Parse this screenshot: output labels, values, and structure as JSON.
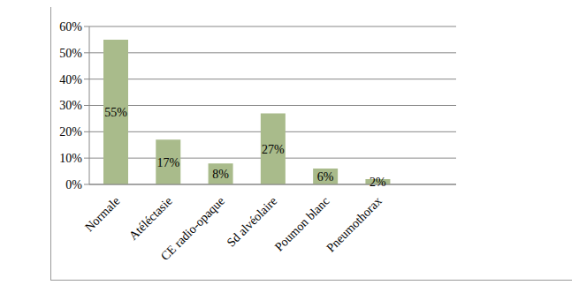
{
  "chart_data": {
    "type": "bar",
    "categories": [
      "Normale",
      "Atéléctasie",
      "CE radio-opaque",
      "Sd alvéolaire",
      "Poumon blanc",
      "Pneumothorax",
      null
    ],
    "values": [
      55,
      17,
      8,
      27,
      6,
      2,
      null
    ],
    "value_labels": [
      "55%",
      "17%",
      "8%",
      "27%",
      "6%",
      "2%",
      null
    ],
    "color": "#a9bb8b",
    "ylim": [
      0,
      60
    ],
    "yticks": [
      {
        "value": 0,
        "label": "0%"
      },
      {
        "value": 10,
        "label": "10%"
      },
      {
        "value": 20,
        "label": "20%"
      },
      {
        "value": 30,
        "label": "30%"
      },
      {
        "value": 40,
        "label": "40%"
      },
      {
        "value": 50,
        "label": "50%"
      },
      {
        "value": 60,
        "label": "60%"
      }
    ],
    "grid": true,
    "data_labels": true
  }
}
